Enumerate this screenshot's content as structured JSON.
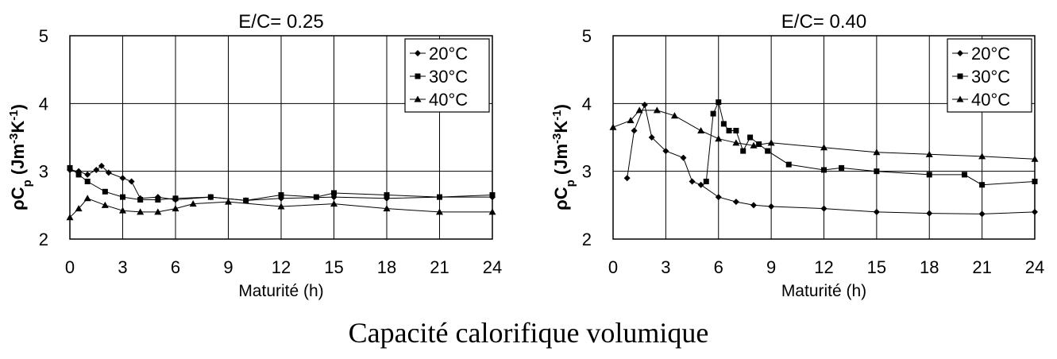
{
  "figure": {
    "caption": "Capacité calorifique volumique"
  },
  "chart_data": [
    {
      "type": "line",
      "title": "E/C= 0.25",
      "xlabel": "Maturité (h)",
      "ylabel": "ρCp (Jm-3K-1)",
      "ylabel_parts": {
        "main": "ρC",
        "sub": "p",
        "unit": "(Jm",
        "exp1": "-3",
        "mid": "K",
        "exp2": "-1",
        "close": ")"
      },
      "xlim": [
        0,
        24
      ],
      "ylim": [
        2,
        5
      ],
      "xticks": [
        "0",
        "3",
        "6",
        "9",
        "12",
        "15",
        "18",
        "21",
        "24"
      ],
      "yticks": [
        "2",
        "3",
        "4",
        "5"
      ],
      "grid": true,
      "legend_position": "top-right",
      "series": [
        {
          "name": "20°C",
          "marker": "diamond",
          "x": [
            0,
            0.5,
            1,
            1.5,
            1.8,
            2.2,
            3,
            3.5,
            4,
            5,
            6,
            8,
            10,
            12,
            15,
            18,
            21,
            24
          ],
          "y": [
            3.02,
            3.0,
            2.95,
            3.02,
            3.08,
            2.98,
            2.9,
            2.85,
            2.6,
            2.62,
            2.58,
            2.62,
            2.57,
            2.6,
            2.62,
            2.6,
            2.62,
            2.62
          ]
        },
        {
          "name": "30°C",
          "marker": "square",
          "x": [
            0,
            0.5,
            1,
            2,
            3,
            4,
            5,
            6,
            8,
            10,
            12,
            14,
            15,
            18,
            21,
            24
          ],
          "y": [
            3.05,
            2.95,
            2.85,
            2.7,
            2.62,
            2.58,
            2.58,
            2.6,
            2.62,
            2.57,
            2.65,
            2.62,
            2.68,
            2.65,
            2.62,
            2.65
          ]
        },
        {
          "name": "40°C",
          "marker": "triangle",
          "x": [
            0,
            0.5,
            1,
            2,
            3,
            4,
            5,
            6,
            7,
            9,
            12,
            15,
            18,
            21,
            24
          ],
          "y": [
            2.32,
            2.45,
            2.6,
            2.5,
            2.42,
            2.4,
            2.4,
            2.45,
            2.52,
            2.55,
            2.48,
            2.52,
            2.45,
            2.4,
            2.4
          ]
        }
      ]
    },
    {
      "type": "line",
      "title": "E/C= 0.40",
      "xlabel": "Maturité (h)",
      "ylabel": "ρCp (Jm-3K-1)",
      "ylabel_parts": {
        "main": "ρC",
        "sub": "p",
        "unit": "(Jm",
        "exp1": "-3",
        "mid": "K",
        "exp2": "-1",
        "close": ")"
      },
      "xlim": [
        0,
        24
      ],
      "ylim": [
        2,
        5
      ],
      "xticks": [
        "0",
        "3",
        "6",
        "9",
        "12",
        "15",
        "18",
        "21",
        "24"
      ],
      "yticks": [
        "2",
        "3",
        "4",
        "5"
      ],
      "grid": true,
      "legend_position": "top-right",
      "series": [
        {
          "name": "20°C",
          "marker": "diamond",
          "x": [
            0.8,
            1.2,
            1.8,
            2.2,
            3,
            4,
            4.5,
            5,
            6,
            7,
            8,
            9,
            12,
            15,
            18,
            21,
            24
          ],
          "y": [
            2.9,
            3.6,
            3.98,
            3.5,
            3.3,
            3.2,
            2.85,
            2.8,
            2.62,
            2.55,
            2.5,
            2.48,
            2.45,
            2.4,
            2.38,
            2.37,
            2.4
          ]
        },
        {
          "name": "30°C",
          "marker": "square",
          "x": [
            5.3,
            5.7,
            6.0,
            6.3,
            6.6,
            7.0,
            7.4,
            7.8,
            8.3,
            8.8,
            10,
            12,
            13,
            15,
            18,
            20,
            21,
            24
          ],
          "y": [
            2.85,
            3.85,
            4.02,
            3.7,
            3.6,
            3.6,
            3.3,
            3.5,
            3.4,
            3.3,
            3.1,
            3.02,
            3.05,
            3.0,
            2.95,
            2.95,
            2.8,
            2.85
          ]
        },
        {
          "name": "40°C",
          "marker": "triangle",
          "x": [
            0,
            1,
            1.5,
            2.5,
            3.5,
            5,
            6,
            7,
            8,
            9,
            12,
            15,
            18,
            21,
            24
          ],
          "y": [
            3.65,
            3.75,
            3.9,
            3.9,
            3.82,
            3.6,
            3.48,
            3.42,
            3.38,
            3.42,
            3.35,
            3.28,
            3.25,
            3.22,
            3.18
          ]
        }
      ]
    }
  ]
}
